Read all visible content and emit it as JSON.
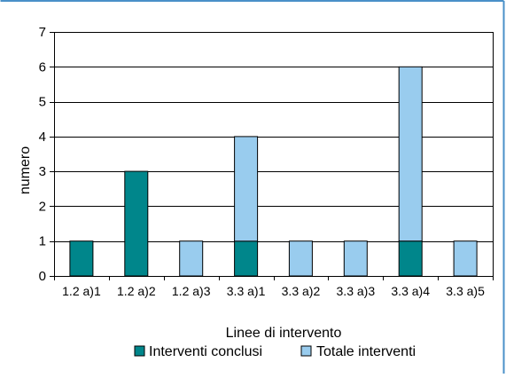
{
  "chart_data": {
    "type": "bar",
    "stacked": true,
    "categories": [
      "1.2 a)1",
      "1.2 a)2",
      "1.2 a)3",
      "3.3 a)1",
      "3.3 a)2",
      "3.3 a)3",
      "3.3 a)4",
      "3.3 a)5"
    ],
    "series": [
      {
        "name": "Interventi conclusi",
        "color": "#00868b",
        "values": [
          1,
          3,
          0,
          1,
          0,
          0,
          1,
          0
        ]
      },
      {
        "name": "Totale interventi",
        "color": "#99ccee",
        "values": [
          0,
          0,
          1,
          3,
          1,
          1,
          5,
          1
        ]
      }
    ],
    "xlabel": "Linee di intervento",
    "ylabel": "numero",
    "ylim": [
      0,
      7
    ],
    "yticks": [
      0,
      1,
      2,
      3,
      4,
      5,
      6,
      7
    ],
    "grid": true,
    "legend_position": "bottom",
    "frame_color": "#4a90c8"
  }
}
